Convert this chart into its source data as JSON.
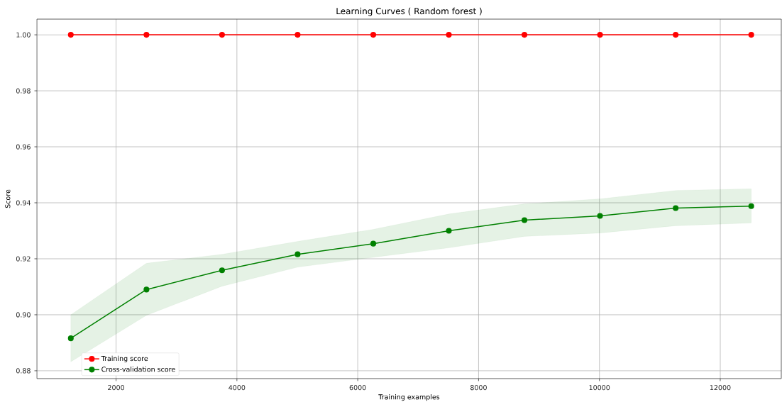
{
  "chart_data": {
    "type": "line",
    "title": "Learning Curves ( Random forest )",
    "xlabel": "Training examples",
    "ylabel": "Score",
    "x": [
      1251,
      2503,
      3754,
      5005,
      6257,
      7508,
      8759,
      10010,
      11262,
      12513
    ],
    "series": [
      {
        "name": "Training score",
        "color": "#ff0000",
        "values": [
          1.0,
          1.0,
          1.0,
          1.0,
          1.0,
          1.0,
          1.0,
          1.0,
          1.0,
          1.0
        ]
      },
      {
        "name": "Cross-validation score",
        "color": "#008000",
        "values": [
          0.8916,
          0.909,
          0.9159,
          0.9216,
          0.9254,
          0.93,
          0.9338,
          0.9353,
          0.9381,
          0.9388
        ],
        "lower": [
          0.8832,
          0.8998,
          0.9102,
          0.917,
          0.9205,
          0.9239,
          0.928,
          0.9292,
          0.9318,
          0.9328
        ],
        "upper": [
          0.9,
          0.9184,
          0.9216,
          0.9262,
          0.9305,
          0.936,
          0.9396,
          0.9414,
          0.9444,
          0.945
        ]
      }
    ],
    "xlim": [
      690,
      13010
    ],
    "ylim": [
      0.8772,
      1.0056
    ],
    "xticks": [
      2000,
      4000,
      6000,
      8000,
      10000,
      12000
    ],
    "yticks": [
      0.88,
      {
        "value": 0.9,
        "label": "0.90"
      },
      0.92,
      0.94,
      0.96,
      0.98,
      {
        "value": 1.0,
        "label": "1.00"
      }
    ],
    "grid": true,
    "legend": "bottom left",
    "marker": "circle",
    "line_style": "solid"
  }
}
